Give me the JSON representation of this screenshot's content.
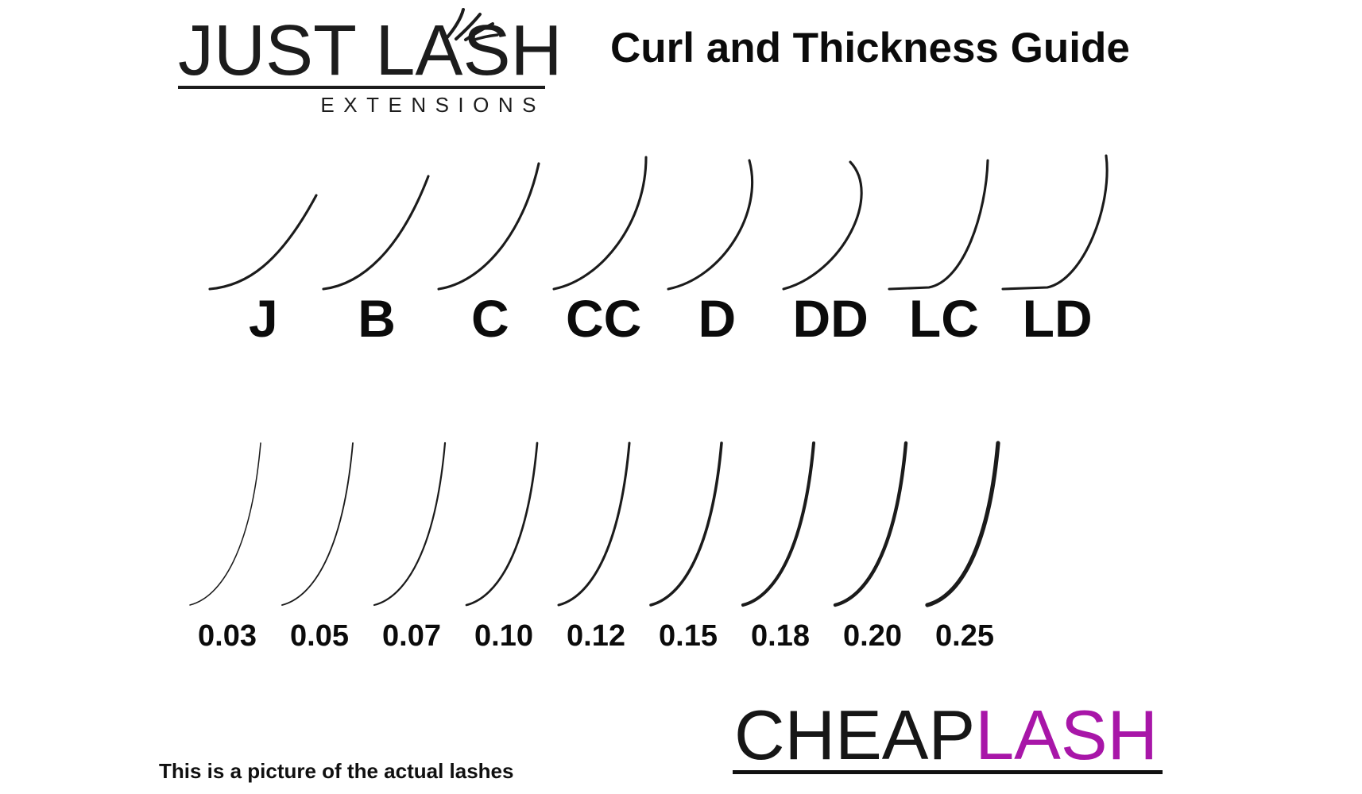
{
  "colors": {
    "ink": "#1b1b1b",
    "background": "#ffffff",
    "accent": "#a816a8"
  },
  "header": {
    "logo": {
      "line1": "JUST LASH",
      "line2": "EXTENSIONS"
    },
    "title": "Curl and Thickness Guide"
  },
  "curl_guide": {
    "description": "lash curl types",
    "items": [
      {
        "label": "J"
      },
      {
        "label": "B"
      },
      {
        "label": "C"
      },
      {
        "label": "CC"
      },
      {
        "label": "D"
      },
      {
        "label": "DD"
      },
      {
        "label": "LC"
      },
      {
        "label": "LD"
      }
    ]
  },
  "thickness_guide": {
    "description": "lash thicknesses in mm",
    "items": [
      {
        "label": "0.03",
        "value": 0.03
      },
      {
        "label": "0.05",
        "value": 0.05
      },
      {
        "label": "0.07",
        "value": 0.07
      },
      {
        "label": "0.10",
        "value": 0.1
      },
      {
        "label": "0.12",
        "value": 0.12
      },
      {
        "label": "0.15",
        "value": 0.15
      },
      {
        "label": "0.18",
        "value": 0.18
      },
      {
        "label": "0.20",
        "value": 0.2
      },
      {
        "label": "0.25",
        "value": 0.25
      }
    ]
  },
  "footer": {
    "note": "This is a picture of the actual lashes",
    "brand": {
      "part1": "CHEAP",
      "part2": "LASH",
      "accent_color": "#a816a8"
    }
  }
}
